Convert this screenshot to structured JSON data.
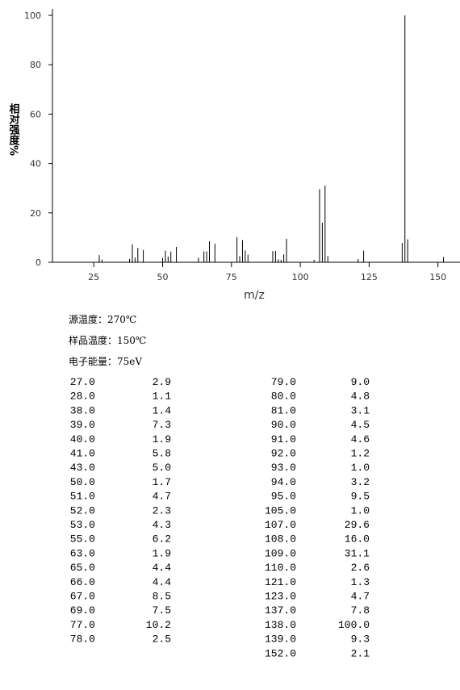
{
  "chart_data": {
    "type": "stem",
    "xlabel": "m/z",
    "ylabel": "相对强度%",
    "x": [
      27,
      28,
      38,
      39,
      40,
      41,
      43,
      50,
      51,
      52,
      53,
      55,
      63,
      65,
      66,
      67,
      69,
      77,
      78,
      79,
      80,
      81,
      90,
      91,
      92,
      93,
      94,
      95,
      105,
      107,
      108,
      109,
      110,
      121,
      123,
      137,
      138,
      139,
      152
    ],
    "values": [
      2.9,
      1.1,
      1.4,
      7.3,
      1.9,
      5.8,
      5.0,
      1.7,
      4.7,
      2.3,
      4.3,
      6.2,
      1.9,
      4.4,
      4.4,
      8.5,
      7.5,
      10.2,
      2.5,
      9.0,
      4.8,
      3.1,
      4.5,
      4.6,
      1.2,
      1.0,
      3.2,
      9.5,
      1.0,
      29.6,
      16.0,
      31.1,
      2.6,
      1.3,
      4.7,
      7.8,
      100.0,
      9.3,
      2.1
    ],
    "color": "#000000",
    "xlim": [
      10,
      158
    ],
    "xticks": [
      25,
      50,
      75,
      100,
      125,
      150
    ],
    "ylim": [
      0,
      100
    ],
    "yticks": [
      0,
      20,
      40,
      60,
      80,
      100
    ]
  },
  "info": [
    "源温度：270℃",
    "样品温度：150℃",
    "电子能量：75eV"
  ],
  "table": {
    "left": [
      [
        "27.0",
        "2.9"
      ],
      [
        "28.0",
        "1.1"
      ],
      [
        "38.0",
        "1.4"
      ],
      [
        "39.0",
        "7.3"
      ],
      [
        "40.0",
        "1.9"
      ],
      [
        "41.0",
        "5.8"
      ],
      [
        "43.0",
        "5.0"
      ],
      [
        "50.0",
        "1.7"
      ],
      [
        "51.0",
        "4.7"
      ],
      [
        "52.0",
        "2.3"
      ],
      [
        "53.0",
        "4.3"
      ],
      [
        "55.0",
        "6.2"
      ],
      [
        "63.0",
        "1.9"
      ],
      [
        "65.0",
        "4.4"
      ],
      [
        "66.0",
        "4.4"
      ],
      [
        "67.0",
        "8.5"
      ],
      [
        "69.0",
        "7.5"
      ],
      [
        "77.0",
        "10.2"
      ],
      [
        "78.0",
        "2.5"
      ]
    ],
    "right": [
      [
        "79.0",
        "9.0"
      ],
      [
        "80.0",
        "4.8"
      ],
      [
        "81.0",
        "3.1"
      ],
      [
        "90.0",
        "4.5"
      ],
      [
        "91.0",
        "4.6"
      ],
      [
        "92.0",
        "1.2"
      ],
      [
        "93.0",
        "1.0"
      ],
      [
        "94.0",
        "3.2"
      ],
      [
        "95.0",
        "9.5"
      ],
      [
        "105.0",
        "1.0"
      ],
      [
        "107.0",
        "29.6"
      ],
      [
        "108.0",
        "16.0"
      ],
      [
        "109.0",
        "31.1"
      ],
      [
        "110.0",
        "2.6"
      ],
      [
        "121.0",
        "1.3"
      ],
      [
        "123.0",
        "4.7"
      ],
      [
        "137.0",
        "7.8"
      ],
      [
        "138.0",
        "100.0"
      ],
      [
        "139.0",
        "9.3"
      ],
      [
        "152.0",
        "2.1"
      ]
    ]
  }
}
